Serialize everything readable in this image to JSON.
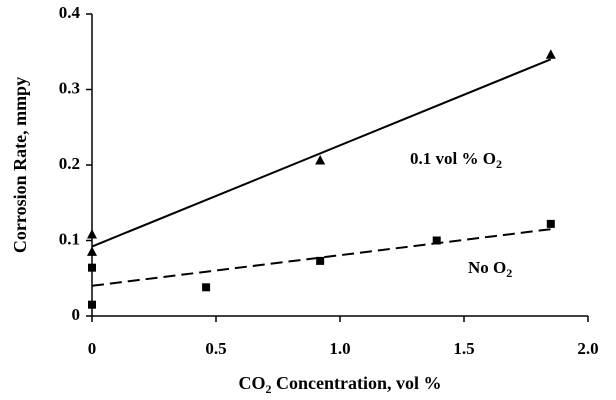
{
  "chart_data": {
    "type": "scatter",
    "x_label": [
      "CO",
      "2",
      " Concentration, vol %"
    ],
    "y_label": "Corrosion Rate, mmpy",
    "xlim": [
      0,
      2
    ],
    "ylim": [
      0,
      0.4
    ],
    "xticks": [
      0,
      0.5,
      {
        "value": 1,
        "label": "1.0"
      },
      1.5,
      {
        "value": 2,
        "label": "2.0"
      }
    ],
    "yticks": [
      0,
      0.1,
      0.2,
      0.3,
      0.4
    ],
    "grid": false,
    "series": [
      {
        "name": [
          "0.1 vol % O",
          "2"
        ],
        "color": "#000000",
        "marker": "triangle",
        "x": [
          0,
          0,
          0.92,
          1.85
        ],
        "values": [
          0.108,
          0.085,
          0.206,
          0.346
        ],
        "trendline": {
          "style": "solid",
          "x": [
            0,
            1.85
          ],
          "values": [
            0.092,
            0.34
          ]
        }
      },
      {
        "name": [
          "No O",
          "2"
        ],
        "color": "#000000",
        "marker": "square",
        "x": [
          0,
          0,
          0.46,
          0.92,
          1.39,
          1.85
        ],
        "values": [
          0.064,
          0.015,
          0.038,
          0.073,
          0.1,
          0.122
        ],
        "trendline": {
          "style": "dashed",
          "x": [
            0,
            1.85
          ],
          "values": [
            0.04,
            0.115
          ]
        }
      }
    ]
  }
}
